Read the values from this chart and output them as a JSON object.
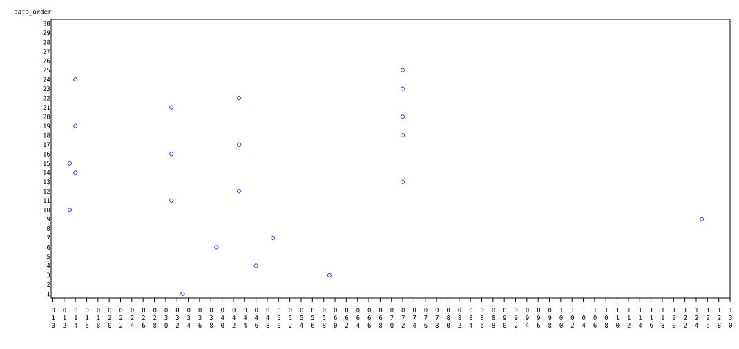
{
  "chart_data": {
    "type": "scatter",
    "ylabel": "data_order",
    "marker": "circle",
    "grid": false,
    "series": [
      {
        "color": "#0000ff",
        "x": [
          33,
          59,
          46,
          39,
          49,
          125,
          13,
          31,
          43,
          72,
          14,
          13,
          31,
          43,
          72,
          14,
          72,
          31,
          43,
          72,
          14,
          72
        ],
        "values": [
          1,
          3,
          4,
          6,
          7,
          9,
          10,
          11,
          12,
          13,
          14,
          15,
          16,
          17,
          18,
          19,
          20,
          21,
          22,
          23,
          24,
          25
        ]
      }
    ],
    "xlim": [
      9.7,
      130
    ],
    "xticks": [
      {
        "value": 10,
        "label": "010"
      },
      {
        "value": 12,
        "label": "012"
      },
      {
        "value": 14,
        "label": "014"
      },
      {
        "value": 16,
        "label": "016"
      },
      {
        "value": 18,
        "label": "018"
      },
      {
        "value": 20,
        "label": "020"
      },
      {
        "value": 22,
        "label": "022"
      },
      {
        "value": 24,
        "label": "024"
      },
      {
        "value": 26,
        "label": "026"
      },
      {
        "value": 28,
        "label": "028"
      },
      {
        "value": 30,
        "label": "030"
      },
      {
        "value": 32,
        "label": "032"
      },
      {
        "value": 34,
        "label": "034"
      },
      {
        "value": 36,
        "label": "036"
      },
      {
        "value": 38,
        "label": "038"
      },
      {
        "value": 40,
        "label": "040"
      },
      {
        "value": 42,
        "label": "042"
      },
      {
        "value": 44,
        "label": "044"
      },
      {
        "value": 46,
        "label": "046"
      },
      {
        "value": 48,
        "label": "048"
      },
      {
        "value": 50,
        "label": "050"
      },
      {
        "value": 52,
        "label": "052"
      },
      {
        "value": 54,
        "label": "054"
      },
      {
        "value": 56,
        "label": "056"
      },
      {
        "value": 58,
        "label": "058"
      },
      {
        "value": 60,
        "label": "060"
      },
      {
        "value": 62,
        "label": "062"
      },
      {
        "value": 64,
        "label": "064"
      },
      {
        "value": 66,
        "label": "066"
      },
      {
        "value": 68,
        "label": "068"
      },
      {
        "value": 70,
        "label": "070"
      },
      {
        "value": 72,
        "label": "072"
      },
      {
        "value": 74,
        "label": "074"
      },
      {
        "value": 76,
        "label": "076"
      },
      {
        "value": 78,
        "label": "078"
      },
      {
        "value": 80,
        "label": "080"
      },
      {
        "value": 82,
        "label": "082"
      },
      {
        "value": 84,
        "label": "084"
      },
      {
        "value": 86,
        "label": "086"
      },
      {
        "value": 88,
        "label": "088"
      },
      {
        "value": 90,
        "label": "090"
      },
      {
        "value": 92,
        "label": "092"
      },
      {
        "value": 94,
        "label": "094"
      },
      {
        "value": 96,
        "label": "096"
      },
      {
        "value": 98,
        "label": "098"
      },
      {
        "value": 100,
        "label": "100"
      },
      {
        "value": 102,
        "label": "102"
      },
      {
        "value": 104,
        "label": "104"
      },
      {
        "value": 106,
        "label": "106"
      },
      {
        "value": 108,
        "label": "108"
      },
      {
        "value": 110,
        "label": "110"
      },
      {
        "value": 112,
        "label": "112"
      },
      {
        "value": 114,
        "label": "114"
      },
      {
        "value": 116,
        "label": "116"
      },
      {
        "value": 118,
        "label": "118"
      },
      {
        "value": 120,
        "label": "120"
      },
      {
        "value": 122,
        "label": "122"
      },
      {
        "value": 124,
        "label": "124"
      },
      {
        "value": 126,
        "label": "126"
      },
      {
        "value": 128,
        "label": "128"
      },
      {
        "value": 130,
        "label": "130"
      }
    ],
    "ylim": [
      0.55,
      30.45
    ],
    "yticks": [
      1,
      2,
      3,
      4,
      5,
      6,
      7,
      8,
      9,
      10,
      11,
      12,
      13,
      14,
      15,
      16,
      17,
      18,
      19,
      20,
      21,
      22,
      23,
      24,
      25,
      26,
      27,
      28,
      29,
      30
    ]
  }
}
